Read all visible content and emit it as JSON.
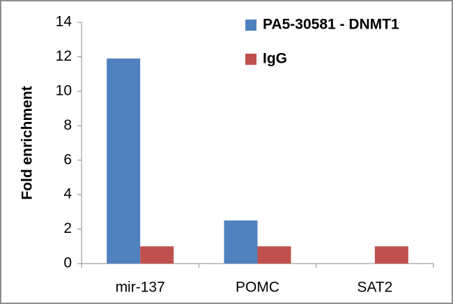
{
  "chart_data": {
    "type": "bar",
    "y_label": "Fold enrichment",
    "categories": [
      "mir-137",
      "POMC",
      "SAT2"
    ],
    "series": [
      {
        "name": "PA5-30581 - DNMT1",
        "color": "#4f81bd",
        "values": [
          11.9,
          2.5,
          0
        ]
      },
      {
        "name": "IgG",
        "color": "#c0504d",
        "values": [
          1,
          1,
          1
        ]
      }
    ],
    "ylim": [
      0,
      14
    ],
    "yticks": [
      0,
      2,
      4,
      6,
      8,
      10,
      12,
      14
    ],
    "grid": false,
    "legend": "top-right"
  }
}
